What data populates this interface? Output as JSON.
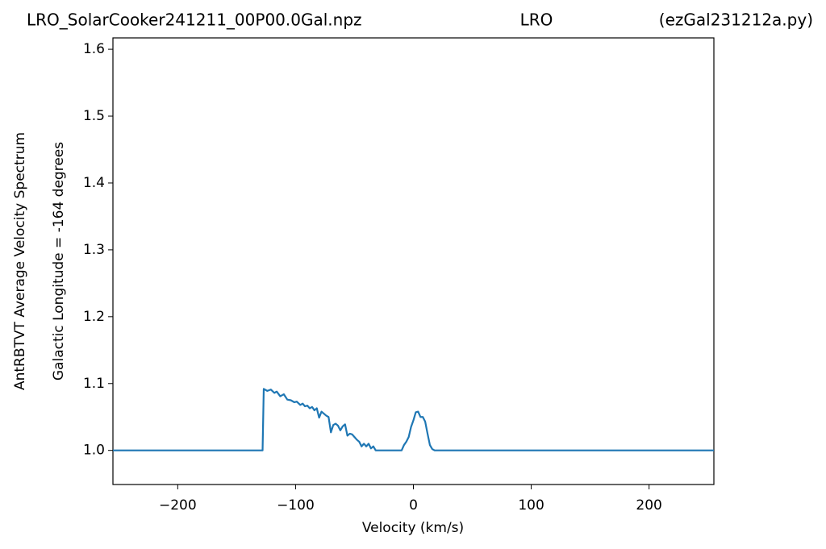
{
  "chart_data": {
    "type": "line",
    "title": [
      "LRO_SolarCooker241211_00P00.0Gal.npz",
      "LRO",
      "(ezGal231212a.py)"
    ],
    "xlabel": "Velocity (km/s)",
    "ylabel": [
      "AntRBTVT Average Velocity Spectrum",
      "Galactic Longitude = -164 degrees"
    ],
    "xlim": [
      -255,
      255
    ],
    "ylim": [
      0.949,
      1.617
    ],
    "xticks": [
      {
        "value": -200,
        "label": "−200"
      },
      {
        "value": -100,
        "label": "−100"
      },
      0,
      100,
      200
    ],
    "yticks": [
      {
        "value": 1,
        "label": "1.0"
      },
      1.1,
      1.2,
      1.3,
      1.4,
      1.5,
      1.6
    ],
    "grid": false,
    "series": [
      {
        "color": "#1f77b4",
        "x": [
          -255,
          -128,
          -127,
          -124,
          -121,
          -118,
          -116,
          -113,
          -110,
          -107,
          -104,
          -101,
          -99,
          -96,
          -94,
          -92,
          -90,
          -88,
          -86,
          -84,
          -82,
          -80,
          -78,
          -76,
          -74,
          -72,
          -70,
          -68,
          -66,
          -64,
          -62,
          -60,
          -58,
          -56,
          -54,
          -52,
          -50,
          -48,
          -46,
          -44,
          -42,
          -40,
          -38,
          -36,
          -34,
          -32,
          -30,
          -10,
          -8,
          -6,
          -4,
          -2,
          0,
          2,
          4,
          6,
          8,
          10,
          12,
          14,
          16,
          18,
          255
        ],
        "values": [
          1.0,
          1.0,
          1.092,
          1.089,
          1.091,
          1.086,
          1.088,
          1.081,
          1.084,
          1.076,
          1.075,
          1.072,
          1.073,
          1.068,
          1.07,
          1.066,
          1.067,
          1.063,
          1.065,
          1.06,
          1.063,
          1.049,
          1.058,
          1.055,
          1.052,
          1.05,
          1.027,
          1.038,
          1.04,
          1.037,
          1.03,
          1.036,
          1.039,
          1.022,
          1.025,
          1.024,
          1.02,
          1.016,
          1.013,
          1.006,
          1.01,
          1.006,
          1.01,
          1.003,
          1.006,
          1.0,
          1.0,
          1.0,
          1.008,
          1.013,
          1.02,
          1.035,
          1.045,
          1.057,
          1.058,
          1.05,
          1.05,
          1.043,
          1.025,
          1.008,
          1.002,
          1.0,
          1.0
        ]
      }
    ]
  }
}
